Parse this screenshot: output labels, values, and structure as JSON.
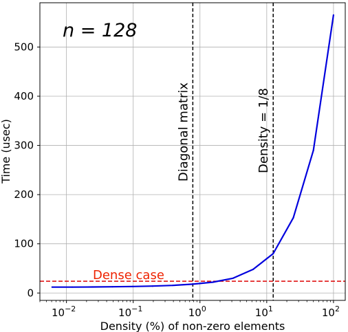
{
  "chart_data": {
    "type": "line",
    "annotation": "n = 128",
    "xlabel": "Density (%) of non-zero elements",
    "ylabel": "Time (usec)",
    "xscale": "log",
    "xlim": [
      0.004,
      150
    ],
    "ylim": [
      -15,
      590
    ],
    "grid": true,
    "x_ticks": [
      {
        "value": 0.01,
        "base": "10",
        "exp": "−2"
      },
      {
        "value": 0.1,
        "base": "10",
        "exp": "−1"
      },
      {
        "value": 1,
        "base": "10",
        "exp": "0"
      },
      {
        "value": 10,
        "base": "10",
        "exp": "1"
      },
      {
        "value": 100,
        "base": "10",
        "exp": "2"
      }
    ],
    "y_ticks": [
      0,
      100,
      200,
      300,
      400,
      500
    ],
    "series": [
      {
        "color": "#0000dd",
        "x": [
          0.0061,
          0.0122,
          0.0244,
          0.0488,
          0.0977,
          0.195,
          0.391,
          0.781,
          1.5625,
          3.125,
          6.25,
          12.5,
          25,
          50,
          100
        ],
        "y": [
          12,
          12,
          12.3,
          12.7,
          13.2,
          14,
          15.5,
          18,
          22,
          30,
          48,
          80,
          153,
          290,
          565
        ]
      }
    ],
    "reference_lines": [
      {
        "orientation": "vertical",
        "x": 0.78125,
        "label": "Diagonal matrix",
        "color": "#000000",
        "style": "dashed"
      },
      {
        "orientation": "vertical",
        "x": 12.5,
        "label": "Density = 1/8",
        "color": "#000000",
        "style": "dashed"
      },
      {
        "orientation": "horizontal",
        "y": 24,
        "label": "Dense case",
        "color": "#dd0000",
        "style": "dashed",
        "label_color": "#ee2200"
      }
    ]
  }
}
